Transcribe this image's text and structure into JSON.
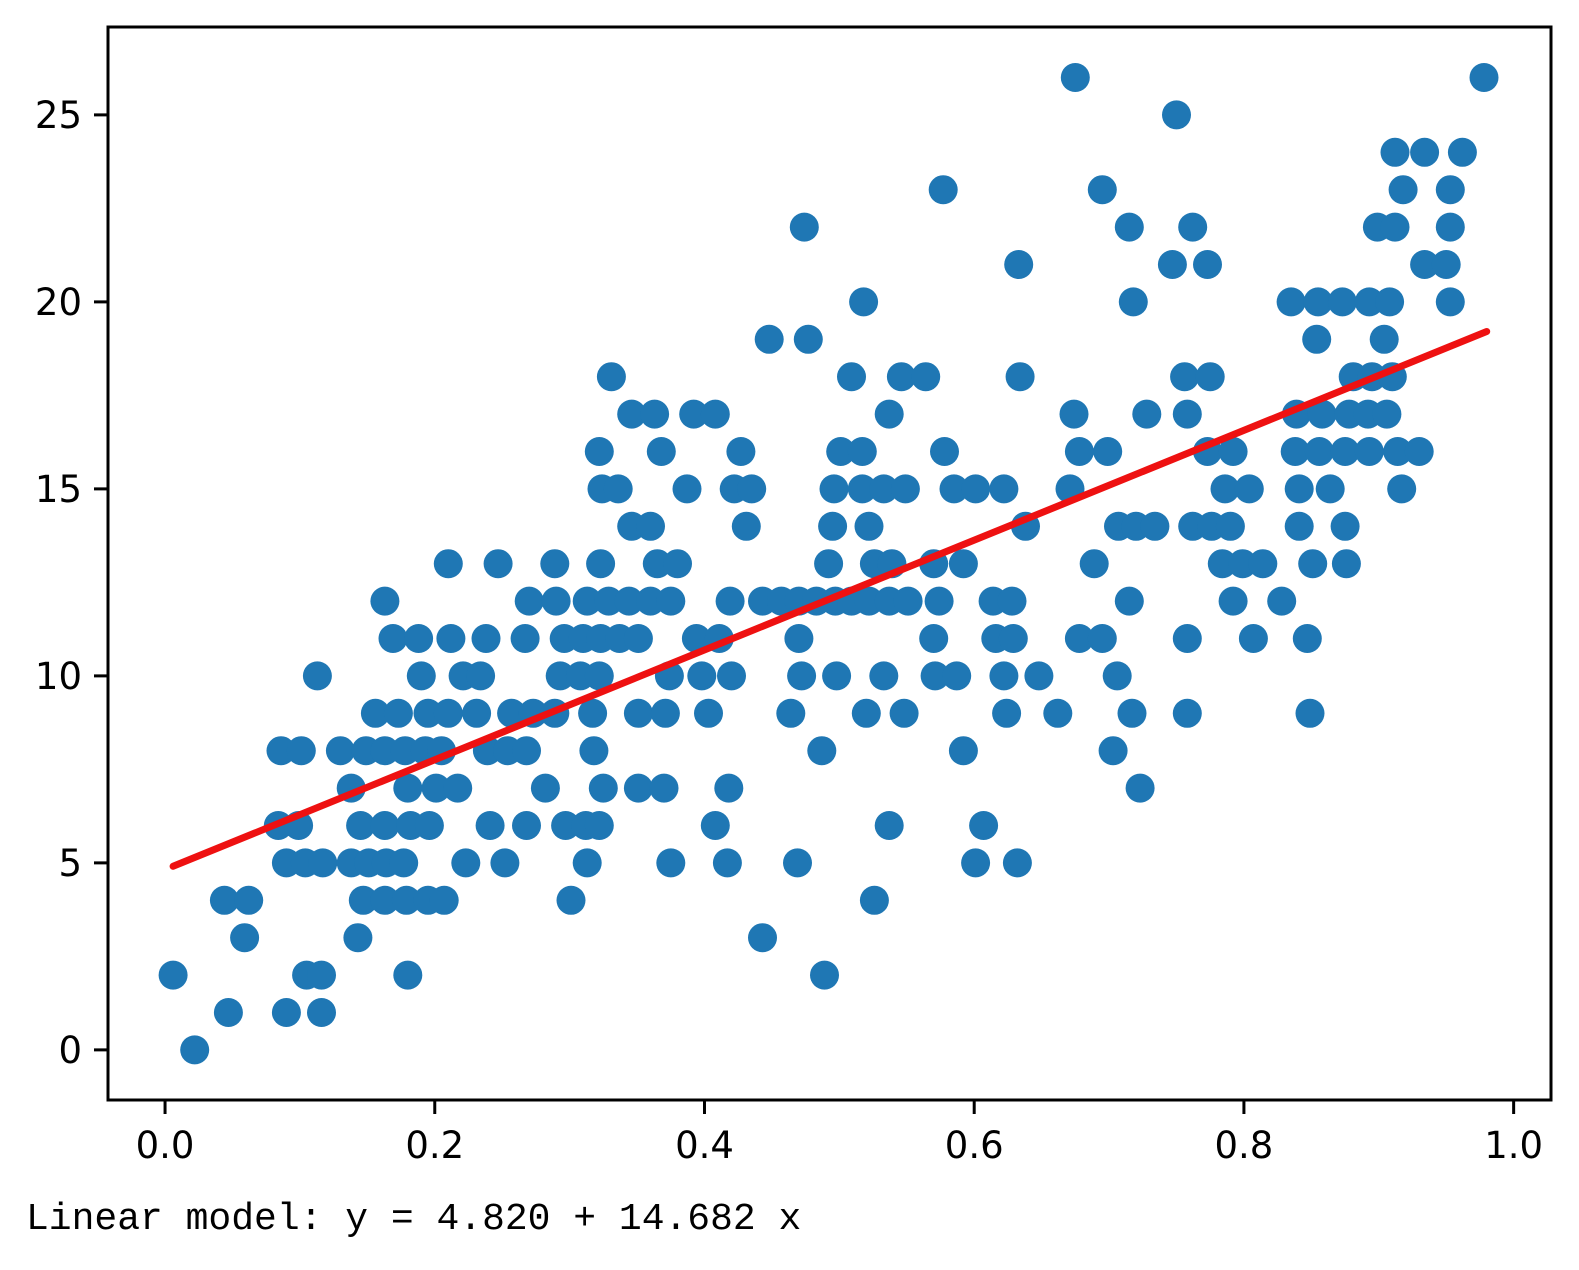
{
  "chart_data": {
    "type": "scatter",
    "title": "",
    "xlabel": "",
    "ylabel": "",
    "caption": "Linear model: y = 4.820 + 14.682 x",
    "grid": false,
    "legend": null,
    "marker_color": "#1f77b4",
    "line_color": "#ee1111",
    "frame_color": "#000000",
    "xlim": [
      -0.0423,
      1.0277
    ],
    "ylim": [
      -1.34,
      27.35
    ],
    "x_ticks": [
      0.0,
      0.2,
      0.4,
      0.6,
      0.8,
      1.0
    ],
    "x_tick_labels": [
      "0.0",
      "0.2",
      "0.4",
      "0.6",
      "0.8",
      "1.0"
    ],
    "y_ticks": [
      0,
      5,
      10,
      15,
      20,
      25
    ],
    "y_tick_labels": [
      "0",
      "5",
      "10",
      "15",
      "20",
      "25"
    ],
    "regression": {
      "intercept": 4.82,
      "slope": 14.682,
      "x_start": 0.006,
      "x_end": 0.98
    },
    "points": [
      [
        0.022,
        0
      ],
      [
        0.047,
        1
      ],
      [
        0.09,
        1
      ],
      [
        0.116,
        1
      ],
      [
        0.006,
        2
      ],
      [
        0.105,
        2
      ],
      [
        0.116,
        2
      ],
      [
        0.18,
        2
      ],
      [
        0.489,
        2
      ],
      [
        0.059,
        3
      ],
      [
        0.143,
        3
      ],
      [
        0.443,
        3
      ],
      [
        0.044,
        4
      ],
      [
        0.062,
        4
      ],
      [
        0.147,
        4
      ],
      [
        0.163,
        4
      ],
      [
        0.179,
        4
      ],
      [
        0.195,
        4
      ],
      [
        0.207,
        4
      ],
      [
        0.301,
        4
      ],
      [
        0.526,
        4
      ],
      [
        0.09,
        5
      ],
      [
        0.104,
        5
      ],
      [
        0.117,
        5
      ],
      [
        0.138,
        5
      ],
      [
        0.151,
        5
      ],
      [
        0.164,
        5
      ],
      [
        0.177,
        5
      ],
      [
        0.223,
        5
      ],
      [
        0.252,
        5
      ],
      [
        0.313,
        5
      ],
      [
        0.375,
        5
      ],
      [
        0.417,
        5
      ],
      [
        0.469,
        5
      ],
      [
        0.601,
        5
      ],
      [
        0.632,
        5
      ],
      [
        0.084,
        6
      ],
      [
        0.099,
        6
      ],
      [
        0.145,
        6
      ],
      [
        0.163,
        6
      ],
      [
        0.182,
        6
      ],
      [
        0.196,
        6
      ],
      [
        0.241,
        6
      ],
      [
        0.268,
        6
      ],
      [
        0.297,
        6
      ],
      [
        0.312,
        6
      ],
      [
        0.322,
        6
      ],
      [
        0.408,
        6
      ],
      [
        0.537,
        6
      ],
      [
        0.607,
        6
      ],
      [
        0.138,
        7
      ],
      [
        0.18,
        7
      ],
      [
        0.201,
        7
      ],
      [
        0.217,
        7
      ],
      [
        0.282,
        7
      ],
      [
        0.325,
        7
      ],
      [
        0.351,
        7
      ],
      [
        0.37,
        7
      ],
      [
        0.418,
        7
      ],
      [
        0.723,
        7
      ],
      [
        0.086,
        8
      ],
      [
        0.101,
        8
      ],
      [
        0.13,
        8
      ],
      [
        0.149,
        8
      ],
      [
        0.163,
        8
      ],
      [
        0.178,
        8
      ],
      [
        0.193,
        8
      ],
      [
        0.205,
        8
      ],
      [
        0.239,
        8
      ],
      [
        0.254,
        8
      ],
      [
        0.268,
        8
      ],
      [
        0.318,
        8
      ],
      [
        0.487,
        8
      ],
      [
        0.592,
        8
      ],
      [
        0.703,
        8
      ],
      [
        0.156,
        9
      ],
      [
        0.173,
        9
      ],
      [
        0.195,
        9
      ],
      [
        0.21,
        9
      ],
      [
        0.231,
        9
      ],
      [
        0.257,
        9
      ],
      [
        0.273,
        9
      ],
      [
        0.289,
        9
      ],
      [
        0.317,
        9
      ],
      [
        0.351,
        9
      ],
      [
        0.371,
        9
      ],
      [
        0.403,
        9
      ],
      [
        0.464,
        9
      ],
      [
        0.52,
        9
      ],
      [
        0.548,
        9
      ],
      [
        0.624,
        9
      ],
      [
        0.662,
        9
      ],
      [
        0.717,
        9
      ],
      [
        0.758,
        9
      ],
      [
        0.849,
        9
      ],
      [
        0.113,
        10
      ],
      [
        0.19,
        10
      ],
      [
        0.221,
        10
      ],
      [
        0.234,
        10
      ],
      [
        0.293,
        10
      ],
      [
        0.308,
        10
      ],
      [
        0.322,
        10
      ],
      [
        0.374,
        10
      ],
      [
        0.398,
        10
      ],
      [
        0.42,
        10
      ],
      [
        0.472,
        10
      ],
      [
        0.498,
        10
      ],
      [
        0.533,
        10
      ],
      [
        0.571,
        10
      ],
      [
        0.587,
        10
      ],
      [
        0.622,
        10
      ],
      [
        0.648,
        10
      ],
      [
        0.706,
        10
      ],
      [
        0.169,
        11
      ],
      [
        0.188,
        11
      ],
      [
        0.212,
        11
      ],
      [
        0.238,
        11
      ],
      [
        0.267,
        11
      ],
      [
        0.296,
        11
      ],
      [
        0.31,
        11
      ],
      [
        0.323,
        11
      ],
      [
        0.337,
        11
      ],
      [
        0.351,
        11
      ],
      [
        0.394,
        11
      ],
      [
        0.411,
        11
      ],
      [
        0.47,
        11
      ],
      [
        0.57,
        11
      ],
      [
        0.616,
        11
      ],
      [
        0.629,
        11
      ],
      [
        0.678,
        11
      ],
      [
        0.695,
        11
      ],
      [
        0.758,
        11
      ],
      [
        0.807,
        11
      ],
      [
        0.847,
        11
      ],
      [
        0.163,
        12
      ],
      [
        0.27,
        12
      ],
      [
        0.29,
        12
      ],
      [
        0.313,
        12
      ],
      [
        0.329,
        12
      ],
      [
        0.344,
        12
      ],
      [
        0.36,
        12
      ],
      [
        0.375,
        12
      ],
      [
        0.419,
        12
      ],
      [
        0.443,
        12
      ],
      [
        0.457,
        12
      ],
      [
        0.47,
        12
      ],
      [
        0.483,
        12
      ],
      [
        0.497,
        12
      ],
      [
        0.509,
        12
      ],
      [
        0.522,
        12
      ],
      [
        0.537,
        12
      ],
      [
        0.551,
        12
      ],
      [
        0.574,
        12
      ],
      [
        0.614,
        12
      ],
      [
        0.628,
        12
      ],
      [
        0.715,
        12
      ],
      [
        0.792,
        12
      ],
      [
        0.828,
        12
      ],
      [
        0.21,
        13
      ],
      [
        0.247,
        13
      ],
      [
        0.289,
        13
      ],
      [
        0.323,
        13
      ],
      [
        0.365,
        13
      ],
      [
        0.38,
        13
      ],
      [
        0.492,
        13
      ],
      [
        0.526,
        13
      ],
      [
        0.539,
        13
      ],
      [
        0.57,
        13
      ],
      [
        0.592,
        13
      ],
      [
        0.689,
        13
      ],
      [
        0.784,
        13
      ],
      [
        0.799,
        13
      ],
      [
        0.814,
        13
      ],
      [
        0.851,
        13
      ],
      [
        0.876,
        13
      ],
      [
        0.346,
        14
      ],
      [
        0.36,
        14
      ],
      [
        0.431,
        14
      ],
      [
        0.495,
        14
      ],
      [
        0.522,
        14
      ],
      [
        0.638,
        14
      ],
      [
        0.707,
        14
      ],
      [
        0.72,
        14
      ],
      [
        0.734,
        14
      ],
      [
        0.762,
        14
      ],
      [
        0.776,
        14
      ],
      [
        0.79,
        14
      ],
      [
        0.841,
        14
      ],
      [
        0.875,
        14
      ],
      [
        0.324,
        15
      ],
      [
        0.336,
        15
      ],
      [
        0.387,
        15
      ],
      [
        0.422,
        15
      ],
      [
        0.435,
        15
      ],
      [
        0.496,
        15
      ],
      [
        0.517,
        15
      ],
      [
        0.533,
        15
      ],
      [
        0.549,
        15
      ],
      [
        0.585,
        15
      ],
      [
        0.601,
        15
      ],
      [
        0.622,
        15
      ],
      [
        0.671,
        15
      ],
      [
        0.786,
        15
      ],
      [
        0.804,
        15
      ],
      [
        0.841,
        15
      ],
      [
        0.864,
        15
      ],
      [
        0.917,
        15
      ],
      [
        0.322,
        16
      ],
      [
        0.368,
        16
      ],
      [
        0.427,
        16
      ],
      [
        0.501,
        16
      ],
      [
        0.517,
        16
      ],
      [
        0.578,
        16
      ],
      [
        0.678,
        16
      ],
      [
        0.699,
        16
      ],
      [
        0.773,
        16
      ],
      [
        0.792,
        16
      ],
      [
        0.838,
        16
      ],
      [
        0.856,
        16
      ],
      [
        0.875,
        16
      ],
      [
        0.893,
        16
      ],
      [
        0.914,
        16
      ],
      [
        0.93,
        16
      ],
      [
        0.346,
        17
      ],
      [
        0.363,
        17
      ],
      [
        0.392,
        17
      ],
      [
        0.408,
        17
      ],
      [
        0.537,
        17
      ],
      [
        0.674,
        17
      ],
      [
        0.728,
        17
      ],
      [
        0.758,
        17
      ],
      [
        0.839,
        17
      ],
      [
        0.858,
        17
      ],
      [
        0.878,
        17
      ],
      [
        0.892,
        17
      ],
      [
        0.906,
        17
      ],
      [
        0.331,
        18
      ],
      [
        0.509,
        18
      ],
      [
        0.546,
        18
      ],
      [
        0.564,
        18
      ],
      [
        0.634,
        18
      ],
      [
        0.756,
        18
      ],
      [
        0.775,
        18
      ],
      [
        0.881,
        18
      ],
      [
        0.895,
        18
      ],
      [
        0.91,
        18
      ],
      [
        0.448,
        19
      ],
      [
        0.477,
        19
      ],
      [
        0.854,
        19
      ],
      [
        0.904,
        19
      ],
      [
        0.518,
        20
      ],
      [
        0.718,
        20
      ],
      [
        0.835,
        20
      ],
      [
        0.855,
        20
      ],
      [
        0.873,
        20
      ],
      [
        0.893,
        20
      ],
      [
        0.908,
        20
      ],
      [
        0.953,
        20
      ],
      [
        0.633,
        21
      ],
      [
        0.747,
        21
      ],
      [
        0.773,
        21
      ],
      [
        0.934,
        21
      ],
      [
        0.95,
        21
      ],
      [
        0.474,
        22
      ],
      [
        0.715,
        22
      ],
      [
        0.762,
        22
      ],
      [
        0.899,
        22
      ],
      [
        0.912,
        22
      ],
      [
        0.953,
        22
      ],
      [
        0.577,
        23
      ],
      [
        0.695,
        23
      ],
      [
        0.918,
        23
      ],
      [
        0.953,
        23
      ],
      [
        0.912,
        24
      ],
      [
        0.934,
        24
      ],
      [
        0.962,
        24
      ],
      [
        0.75,
        25
      ],
      [
        0.675,
        26
      ],
      [
        0.978,
        26
      ]
    ]
  }
}
